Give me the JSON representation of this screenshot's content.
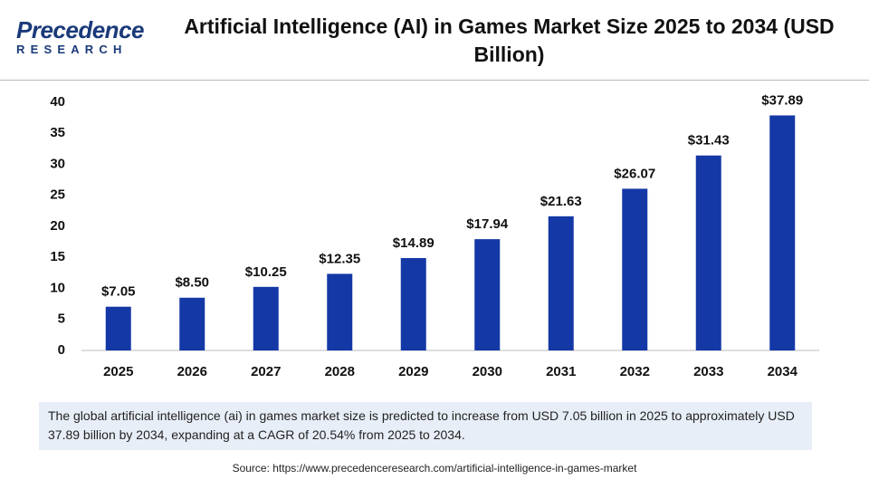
{
  "logo": {
    "name": "Precedence",
    "sub": "RESEARCH"
  },
  "chart_data": {
    "type": "bar",
    "title": "Artificial Intelligence (AI) in Games Market Size 2025 to 2034 (USD Billion)",
    "categories": [
      "2025",
      "2026",
      "2027",
      "2028",
      "2029",
      "2030",
      "2031",
      "2032",
      "2033",
      "2034"
    ],
    "values": [
      7.05,
      8.5,
      10.25,
      12.35,
      14.89,
      17.94,
      21.63,
      26.07,
      31.43,
      37.89
    ],
    "value_labels": [
      "$7.05",
      "$8.50",
      "$10.25",
      "$12.35",
      "$14.89",
      "$17.94",
      "$21.63",
      "$26.07",
      "$31.43",
      "$37.89"
    ],
    "color": "#1438a6",
    "ylim": [
      0,
      40
    ],
    "yticks": [
      0,
      5,
      10,
      15,
      20,
      25,
      30,
      35,
      40
    ],
    "grid": false,
    "description": "The global artificial intelligence (ai) in games market size is predicted to increase from USD 7.05 billion in 2025 to approximately USD 37.89 billion by 2034, expanding at a CAGR of 20.54% from 2025 to 2034.",
    "source": "Source: https://www.precedenceresearch.com/artificial-intelligence-in-games-market"
  }
}
